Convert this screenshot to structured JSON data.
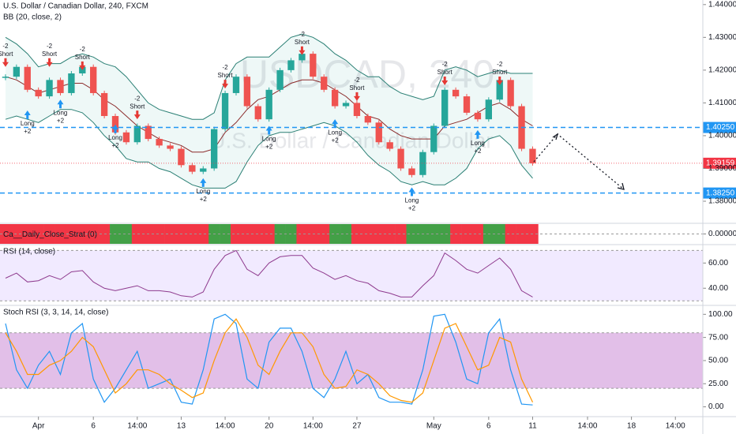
{
  "chart_data": [
    {
      "type": "candlestick",
      "title": "U.S. Dollar / Canadian Dollar, 240, FXCM",
      "subtitle": "BB (20, close, 2)",
      "watermark": [
        "USDCAD, 240",
        "U.S. Dollar / Canadian Dollar"
      ],
      "categories": [
        null,
        null,
        null,
        "Apr",
        null,
        null,
        null,
        null,
        "6",
        null,
        null,
        null,
        "14:00",
        null,
        null,
        null,
        "13",
        null,
        null,
        null,
        "14:00",
        null,
        null,
        null,
        "20",
        null,
        null,
        null,
        "14:00",
        null,
        null,
        null,
        "27",
        null,
        null,
        null,
        null,
        null,
        null,
        "May",
        null,
        null,
        null,
        null,
        "6",
        null,
        null,
        null,
        "11",
        null,
        null,
        null,
        null,
        "14:00",
        null,
        null,
        null,
        "18",
        null,
        null,
        null,
        "14:00",
        null,
        null
      ],
      "values": [
        1.418,
        1.421,
        1.414,
        1.412,
        1.417,
        1.413,
        1.419,
        1.421,
        1.413,
        1.406,
        1.401,
        1.398,
        1.403,
        1.399,
        1.397,
        1.396,
        1.391,
        1.389,
        1.39,
        1.402,
        1.413,
        1.418,
        1.409,
        1.405,
        1.414,
        1.42,
        1.423,
        1.425,
        1.418,
        1.414,
        1.409,
        1.41,
        1.406,
        1.404,
        1.398,
        1.396,
        1.39,
        1.388,
        1.395,
        1.403,
        1.414,
        1.412,
        1.407,
        1.405,
        1.411,
        1.417,
        1.409,
        1.396,
        1.39159,
        null,
        null,
        null,
        null,
        null,
        null,
        null,
        null,
        null,
        null,
        null,
        null,
        null,
        null,
        null
      ],
      "up_color": "#26a69a",
      "down_color": "#ef5350",
      "bands": {
        "color": "#2a7f74",
        "fill": "#26a69a",
        "middle_color": "#8b2b2b",
        "upper": [
          1.43,
          1.428,
          1.425,
          1.421,
          1.422,
          1.422,
          1.424,
          1.425,
          1.424,
          1.422,
          1.421,
          1.418,
          1.414,
          1.41,
          1.408,
          1.407,
          1.406,
          1.405,
          1.405,
          1.407,
          1.417,
          1.422,
          1.424,
          1.424,
          1.424,
          1.427,
          1.43,
          1.431,
          1.43,
          1.428,
          1.425,
          1.423,
          1.42,
          1.418,
          1.418,
          1.415,
          1.413,
          1.412,
          1.411,
          1.412,
          1.42,
          1.421,
          1.42,
          1.418,
          1.419,
          1.42,
          1.419,
          1.419,
          1.419,
          null,
          null,
          null,
          null,
          null,
          null,
          null,
          null,
          null,
          null,
          null,
          null,
          null,
          null,
          null
        ],
        "middle": [
          1.418,
          1.417,
          1.415,
          1.413,
          1.414,
          1.415,
          1.416,
          1.416,
          1.414,
          1.411,
          1.409,
          1.406,
          1.403,
          1.401,
          1.399,
          1.398,
          1.397,
          1.395,
          1.395,
          1.396,
          1.401,
          1.404,
          1.408,
          1.411,
          1.412,
          1.414,
          1.416,
          1.417,
          1.417,
          1.416,
          1.414,
          1.412,
          1.409,
          1.406,
          1.405,
          1.402,
          1.4,
          1.399,
          1.399,
          1.399,
          1.403,
          1.404,
          1.405,
          1.407,
          1.409,
          1.41,
          1.408,
          1.405,
          1.403,
          null,
          null,
          null,
          null,
          null,
          null,
          null,
          null,
          null,
          null,
          null,
          null,
          null,
          null,
          null
        ],
        "lower": [
          1.405,
          1.406,
          1.405,
          1.404,
          1.406,
          1.408,
          1.408,
          1.407,
          1.404,
          1.4,
          1.397,
          1.393,
          1.392,
          1.392,
          1.39,
          1.389,
          1.387,
          1.385,
          1.384,
          1.384,
          1.384,
          1.386,
          1.392,
          1.397,
          1.4,
          1.401,
          1.401,
          1.402,
          1.403,
          1.404,
          1.403,
          1.401,
          1.398,
          1.394,
          1.391,
          1.389,
          1.386,
          1.385,
          1.386,
          1.385,
          1.385,
          1.387,
          1.39,
          1.396,
          1.399,
          1.4,
          1.397,
          1.391,
          1.387,
          null,
          null,
          null,
          null,
          null,
          null,
          null,
          null,
          null,
          null,
          null,
          null,
          null,
          null,
          null
        ]
      },
      "signals": [
        {
          "name": "Short",
          "score": "-2",
          "color": "#e53935",
          "values": [
            1.421,
            null,
            null,
            null,
            1.421,
            null,
            null,
            1.42,
            null,
            null,
            null,
            null,
            1.405,
            null,
            null,
            null,
            null,
            null,
            null,
            null,
            1.4144,
            null,
            null,
            null,
            null,
            null,
            null,
            1.4246,
            null,
            null,
            null,
            null,
            1.4106,
            null,
            null,
            null,
            null,
            null,
            null,
            null,
            1.4154,
            null,
            null,
            null,
            null,
            1.4154,
            null,
            null,
            null,
            null,
            null,
            null,
            null,
            null,
            null,
            null,
            null,
            null,
            null,
            null,
            null,
            null,
            null,
            null
          ]
        },
        {
          "name": "Long",
          "score": "+2",
          "color": "#2196f3",
          "values": [
            null,
            null,
            1.4077,
            null,
            null,
            1.411,
            null,
            null,
            null,
            null,
            1.4034,
            null,
            null,
            null,
            null,
            null,
            null,
            null,
            1.387,
            null,
            null,
            null,
            null,
            null,
            1.403,
            null,
            null,
            null,
            null,
            null,
            1.405,
            null,
            null,
            null,
            null,
            null,
            null,
            1.3842,
            null,
            null,
            null,
            null,
            null,
            1.4017,
            null,
            null,
            null,
            null,
            null,
            null,
            null,
            null,
            null,
            null,
            null,
            null,
            null,
            null,
            null,
            null,
            null,
            null,
            null,
            null
          ]
        }
      ],
      "levels": [
        {
          "value": 1.4025,
          "label": "1.40250",
          "color": "#2196f3"
        },
        {
          "value": 1.3825,
          "label": "1.38250",
          "color": "#2196f3"
        }
      ],
      "last_price": {
        "value": 1.39159,
        "label": "1.39159",
        "color": "#f23645"
      },
      "ylim": [
        1.3735,
        1.4414
      ],
      "yticks": [
        {
          "value": 1.44,
          "label": "1.44000"
        },
        {
          "value": 1.43,
          "label": "1.43000"
        },
        {
          "value": 1.42,
          "label": "1.42000"
        },
        {
          "value": 1.41,
          "label": "1.41000"
        },
        {
          "value": 1.4,
          "label": "1.40000"
        },
        {
          "value": 1.39,
          "label": "1.39000"
        },
        {
          "value": 1.38,
          "label": "1.38000"
        }
      ]
    },
    {
      "type": "state",
      "title": "Ca__Daily_Close_Strat (0)",
      "up_color": "#43a047",
      "down_color": "#f23645",
      "values": [
        -1,
        -1,
        -1,
        -1,
        -1,
        -1,
        -1,
        -1,
        -1,
        -1,
        1,
        1,
        -1,
        -1,
        -1,
        -1,
        -1,
        -1,
        -1,
        1,
        1,
        -1,
        -1,
        -1,
        -1,
        1,
        1,
        -1,
        -1,
        -1,
        1,
        1,
        -1,
        -1,
        -1,
        -1,
        -1,
        1,
        1,
        1,
        1,
        -1,
        -1,
        -1,
        1,
        1,
        -1,
        -1,
        -1,
        null,
        null,
        null,
        null,
        null,
        null,
        null,
        null,
        null,
        null,
        null,
        null,
        null,
        null,
        null
      ],
      "ylim": [
        -1,
        1
      ],
      "yticks": [
        {
          "value": 0,
          "label": "0.00000"
        }
      ]
    },
    {
      "type": "line",
      "title": "RSI (14, close)",
      "color": "#8e3a8e",
      "fill_color": "#b388ff",
      "levels": [
        30,
        70
      ],
      "values": [
        48,
        52,
        45,
        46,
        50,
        47,
        53,
        54,
        45,
        40,
        38,
        40,
        42,
        38,
        38,
        37,
        34,
        33,
        37,
        55,
        66,
        70,
        55,
        50,
        60,
        65,
        66,
        66,
        56,
        52,
        47,
        50,
        46,
        44,
        38,
        36,
        33,
        33,
        42,
        50,
        68,
        62,
        55,
        52,
        58,
        64,
        55,
        38,
        33,
        null,
        null,
        null,
        null,
        null,
        null,
        null,
        null,
        null,
        null,
        null,
        null,
        null,
        null,
        null
      ],
      "ylim": [
        27,
        74
      ],
      "yticks": [
        {
          "value": 40,
          "label": "40.00"
        },
        {
          "value": 60,
          "label": "60.00"
        }
      ]
    },
    {
      "type": "line",
      "title": "Stoch RSI (3, 3, 14, 14, close)",
      "fill_color": "#ab47bc",
      "levels": [
        20,
        80
      ],
      "series": [
        {
          "color": "#2196f3",
          "values": [
            90,
            40,
            20,
            45,
            60,
            35,
            80,
            90,
            30,
            5,
            20,
            40,
            60,
            20,
            25,
            30,
            5,
            3,
            40,
            95,
            100,
            90,
            30,
            20,
            70,
            85,
            85,
            60,
            20,
            10,
            30,
            60,
            25,
            35,
            10,
            5,
            5,
            3,
            40,
            98,
            100,
            70,
            30,
            25,
            80,
            95,
            40,
            3,
            2,
            null,
            null,
            null,
            null,
            null,
            null,
            null,
            null,
            null,
            null,
            null,
            null,
            null,
            null,
            null
          ]
        },
        {
          "color": "#ff9800",
          "values": [
            80,
            60,
            35,
            35,
            45,
            50,
            60,
            75,
            65,
            40,
            15,
            25,
            40,
            40,
            35,
            25,
            18,
            10,
            15,
            50,
            80,
            95,
            75,
            45,
            35,
            60,
            80,
            80,
            65,
            35,
            20,
            22,
            40,
            35,
            25,
            12,
            7,
            5,
            15,
            50,
            85,
            90,
            65,
            40,
            45,
            75,
            70,
            30,
            5,
            null,
            null,
            null,
            null,
            null,
            null,
            null,
            null,
            null,
            null,
            null,
            null,
            null,
            null,
            null
          ]
        }
      ],
      "ylim": [
        -10.6,
        108.8
      ],
      "yticks": [
        {
          "value": 0,
          "label": "0.00"
        },
        {
          "value": 25,
          "label": "25.00"
        },
        {
          "value": 50,
          "label": "50.00"
        },
        {
          "value": 75,
          "label": "75.00"
        },
        {
          "value": 100,
          "label": "100.00"
        }
      ]
    }
  ]
}
